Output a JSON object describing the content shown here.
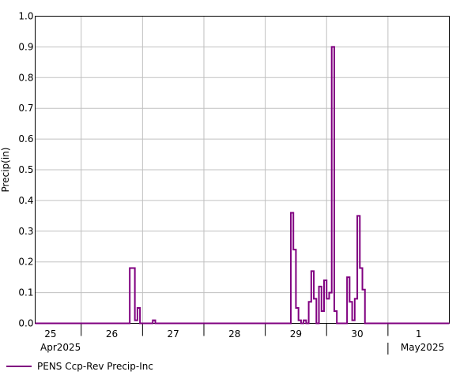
{
  "chart_data": {
    "type": "line",
    "step": true,
    "ylabel": "Precip(in)",
    "xlabel": "",
    "ylim": [
      0,
      1.0
    ],
    "y_ticks": [
      "0.0",
      "0.1",
      "0.2",
      "0.3",
      "0.4",
      "0.5",
      "0.6",
      "0.7",
      "0.8",
      "0.9",
      "1.0"
    ],
    "x_range_hours": [
      0,
      162
    ],
    "x_days": [
      {
        "label": "25",
        "month_label": "Apr2025"
      },
      {
        "label": "26"
      },
      {
        "label": "27"
      },
      {
        "label": "28"
      },
      {
        "label": "29"
      },
      {
        "label": "30"
      },
      {
        "label": "1",
        "month_label": "May2025"
      }
    ],
    "grid": true,
    "legend_position": "bottom-left",
    "series": [
      {
        "name": "PENS Ccp-Rev Precip-Inc",
        "color": "#800080",
        "x_hours": [
          0,
          37,
          38,
          39,
          40,
          41,
          42,
          46,
          47,
          48,
          48,
          50,
          70,
          72,
          74,
          96,
          100,
          101,
          102,
          103,
          104,
          105,
          106,
          107,
          108,
          109,
          110,
          111,
          112,
          113,
          114,
          115,
          116,
          117,
          118,
          119,
          120,
          121,
          122,
          123,
          124,
          125,
          126,
          127,
          128,
          129,
          130,
          131,
          132,
          133,
          140,
          150,
          162
        ],
        "y_values": [
          0,
          0.18,
          0.18,
          0.01,
          0.05,
          0,
          0,
          0.01,
          0,
          0,
          0,
          0,
          0,
          0,
          0,
          0,
          0.36,
          0.24,
          0.05,
          0.01,
          0,
          0.01,
          0,
          0.07,
          0.17,
          0.08,
          0,
          0.12,
          0.04,
          0.14,
          0.08,
          0.1,
          0.9,
          0.04,
          0,
          0,
          0,
          0,
          0.15,
          0.07,
          0.01,
          0.08,
          0.35,
          0.18,
          0.11,
          0,
          0,
          0,
          0,
          0,
          0,
          0,
          0
        ]
      }
    ]
  }
}
